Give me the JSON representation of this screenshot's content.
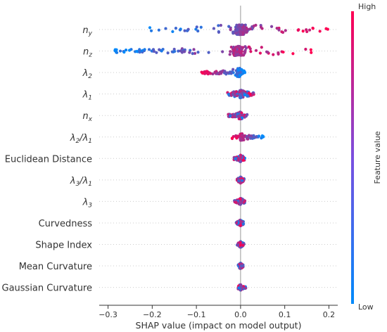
{
  "chart_data": {
    "type": "scatter",
    "subtype": "shap-beeswarm",
    "xlabel": "SHAP value (impact on model output)",
    "xlim": [
      -0.32,
      0.22
    ],
    "xticks": [
      -0.3,
      -0.2,
      -0.1,
      0.0,
      0.1,
      0.2
    ],
    "xtick_labels": [
      "−0.3",
      "−0.2",
      "−0.1",
      "0.0",
      "0.1",
      "0.2"
    ],
    "grid": false,
    "zero_line": true,
    "colorbar": {
      "label": "Feature value",
      "high": "High",
      "low": "Low",
      "low_color": "#008afb",
      "high_color": "#ff0052"
    },
    "features": [
      {
        "name": "n_y",
        "label": "n",
        "sub": "y",
        "min": -0.21,
        "max": 0.2,
        "spread": 0.9,
        "color_trend": "positive"
      },
      {
        "name": "n_z",
        "label": "n",
        "sub": "z",
        "min": -0.29,
        "max": 0.16,
        "spread": 0.85,
        "color_trend": "positive"
      },
      {
        "name": "λ2",
        "label": "λ",
        "sub": "2",
        "min": -0.09,
        "max": 0.01,
        "spread": 0.7,
        "color_trend": "negative"
      },
      {
        "name": "λ1",
        "label": "λ",
        "sub": "1",
        "min": -0.03,
        "max": 0.03,
        "spread": 0.6,
        "color_trend": "mixed"
      },
      {
        "name": "n_x",
        "label": "n",
        "sub": "x",
        "min": -0.03,
        "max": 0.015,
        "spread": 0.5,
        "color_trend": "mixed"
      },
      {
        "name": "λ2/λ1",
        "label": "λ2/λ1",
        "min": -0.02,
        "max": 0.052,
        "spread": 0.45,
        "color_trend": "negative"
      },
      {
        "name": "Euclidean Distance",
        "label": "Euclidean Distance",
        "min": -0.015,
        "max": 0.01,
        "spread": 0.45,
        "color_trend": "mixed"
      },
      {
        "name": "λ3/λ1",
        "label": "λ3/λ1",
        "min": -0.008,
        "max": 0.008,
        "spread": 0.4,
        "color_trend": "mixed"
      },
      {
        "name": "λ3",
        "label": "λ",
        "sub": "3",
        "min": -0.014,
        "max": 0.01,
        "spread": 0.4,
        "color_trend": "mixed"
      },
      {
        "name": "Curvedness",
        "label": "Curvedness",
        "min": -0.01,
        "max": 0.008,
        "spread": 0.35,
        "color_trend": "mixed"
      },
      {
        "name": "Shape Index",
        "label": "Shape Index",
        "min": -0.008,
        "max": 0.008,
        "spread": 0.35,
        "color_trend": "mixed"
      },
      {
        "name": "Mean Curvature",
        "label": "Mean Curvature",
        "min": -0.006,
        "max": 0.006,
        "spread": 0.3,
        "color_trend": "mixed"
      },
      {
        "name": "Gaussian Curvature",
        "label": "Gaussian Curvature",
        "min": -0.006,
        "max": 0.012,
        "spread": 0.3,
        "color_trend": "mixed"
      }
    ]
  }
}
